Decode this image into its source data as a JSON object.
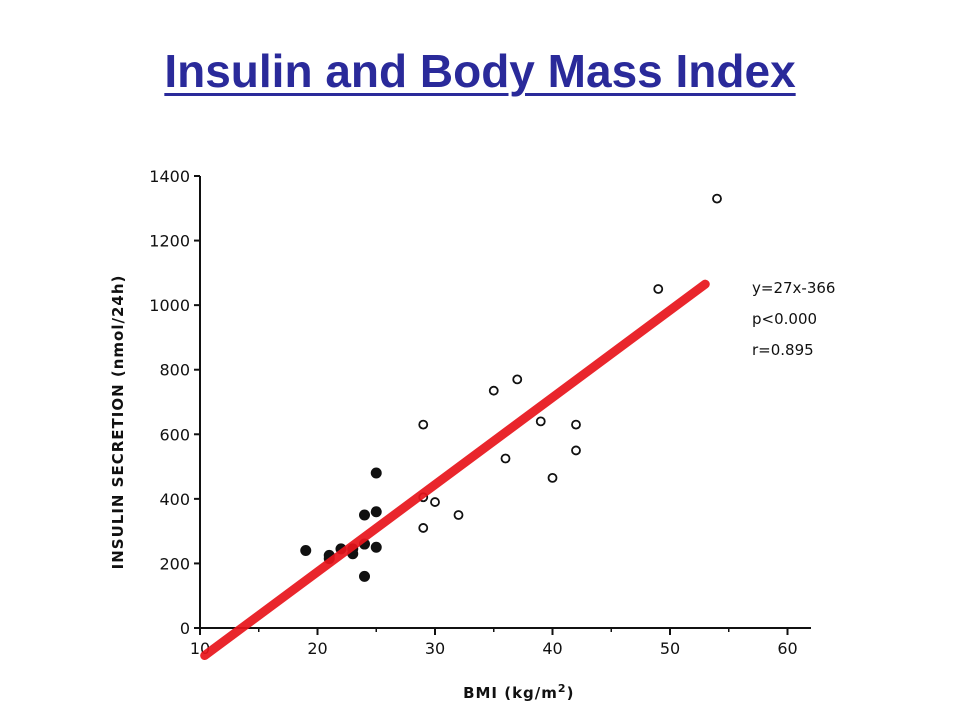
{
  "slide": {
    "title": "Insulin and Body Mass Index"
  },
  "chart_data": {
    "type": "scatter",
    "xlabel": "BMI (kg/m",
    "xlabel_sup": "2",
    "xlabel_close": ")",
    "ylabel": "INSULIN SECRETION (nmol/24h)",
    "xlim": [
      10,
      62
    ],
    "ylim": [
      0,
      1400
    ],
    "x_ticks": [
      10,
      20,
      30,
      40,
      50,
      60
    ],
    "y_ticks": [
      0,
      200,
      400,
      600,
      800,
      1000,
      1200,
      1400
    ],
    "grid": false,
    "colors": {
      "points": "#111111",
      "fit_line": "#e8141b",
      "axis": "#111111"
    },
    "fit_line": {
      "slope": 27,
      "intercept": -366,
      "x_range": [
        10.4,
        53
      ]
    },
    "annotations": [
      "y=27x-366",
      "p<0.000",
      "r=0.895"
    ],
    "series": [
      {
        "marker": "filled",
        "points": [
          [
            19,
            240
          ],
          [
            21,
            215
          ],
          [
            21,
            225
          ],
          [
            22,
            245
          ],
          [
            23,
            230
          ],
          [
            23,
            245
          ],
          [
            24,
            260
          ],
          [
            24,
            350
          ],
          [
            24,
            160
          ],
          [
            25,
            480
          ],
          [
            25,
            360
          ],
          [
            25,
            250
          ]
        ]
      },
      {
        "marker": "open",
        "points": [
          [
            29,
            630
          ],
          [
            29,
            405
          ],
          [
            29,
            310
          ],
          [
            30,
            390
          ],
          [
            32,
            350
          ],
          [
            35,
            735
          ],
          [
            36,
            525
          ],
          [
            37,
            770
          ],
          [
            39,
            640
          ],
          [
            40,
            465
          ],
          [
            42,
            630
          ],
          [
            42,
            550
          ],
          [
            49,
            1050
          ],
          [
            54,
            1330
          ]
        ]
      }
    ]
  }
}
